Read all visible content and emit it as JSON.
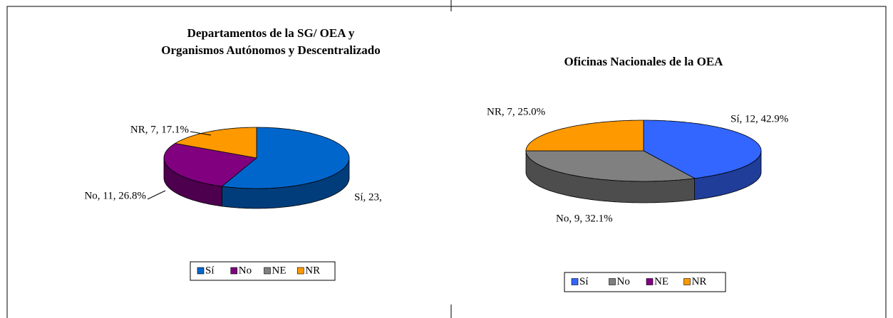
{
  "chart_data": [
    {
      "type": "pie3d",
      "title": [
        "Departamentos de la SG/ OEA y",
        "Organismos Autónomos y Descentralizado"
      ],
      "categories": [
        "Sí",
        "No",
        "NE",
        "NR"
      ],
      "values": [
        23,
        11,
        0,
        7
      ],
      "value_labels": [
        "Sí, 23,",
        "No, 11, 26.8%",
        null,
        "NR, 7, 17.1%"
      ],
      "colors": [
        "#0066cc",
        "#800080",
        "#808080",
        "#ff9900"
      ],
      "legend": "bottom"
    },
    {
      "type": "pie3d",
      "title": [
        "Oficinas Nacionales de la OEA"
      ],
      "categories": [
        "Sí",
        "No",
        "NE",
        "NR"
      ],
      "values": [
        12,
        9,
        0,
        7
      ],
      "value_labels": [
        "Sí, 12, 42.9%",
        "No, 9, 32.1%",
        null,
        "NR, 7, 25.0%"
      ],
      "colors": [
        "#3366ff",
        "#808080",
        "#800080",
        "#ff9900"
      ],
      "legend": "bottom"
    }
  ]
}
